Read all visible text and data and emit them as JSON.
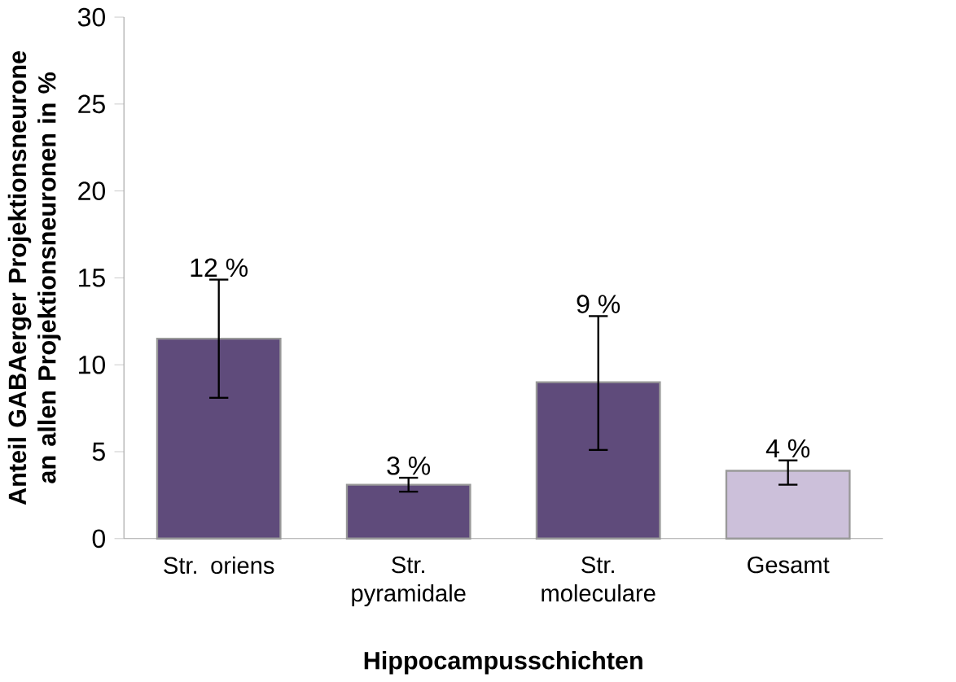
{
  "chart_data": {
    "type": "bar",
    "xlabel": "Hippocampusschichten",
    "ylabel": "Anteil GABAerger Projektionsneurone an allen Projektionsneuronen in %",
    "categories": [
      "Str. oriens",
      "Str. pyramidale",
      "Str. moleculare",
      "Gesamt"
    ],
    "values": [
      11.5,
      3.1,
      9.0,
      3.9
    ],
    "errors": [
      [
        8.1,
        14.9
      ],
      [
        2.7,
        3.5
      ],
      [
        5.1,
        12.8
      ],
      [
        3.1,
        4.5
      ]
    ],
    "colors": [
      "#5f4b7b",
      "#5f4b7b",
      "#5f4b7b",
      "#ccc0da"
    ],
    "value_labels": [
      "12 %",
      "3 %",
      "9 %",
      "4 %"
    ],
    "ylim": [
      0,
      30
    ],
    "yticks": [
      0,
      5,
      10,
      15,
      20,
      25,
      30
    ]
  }
}
